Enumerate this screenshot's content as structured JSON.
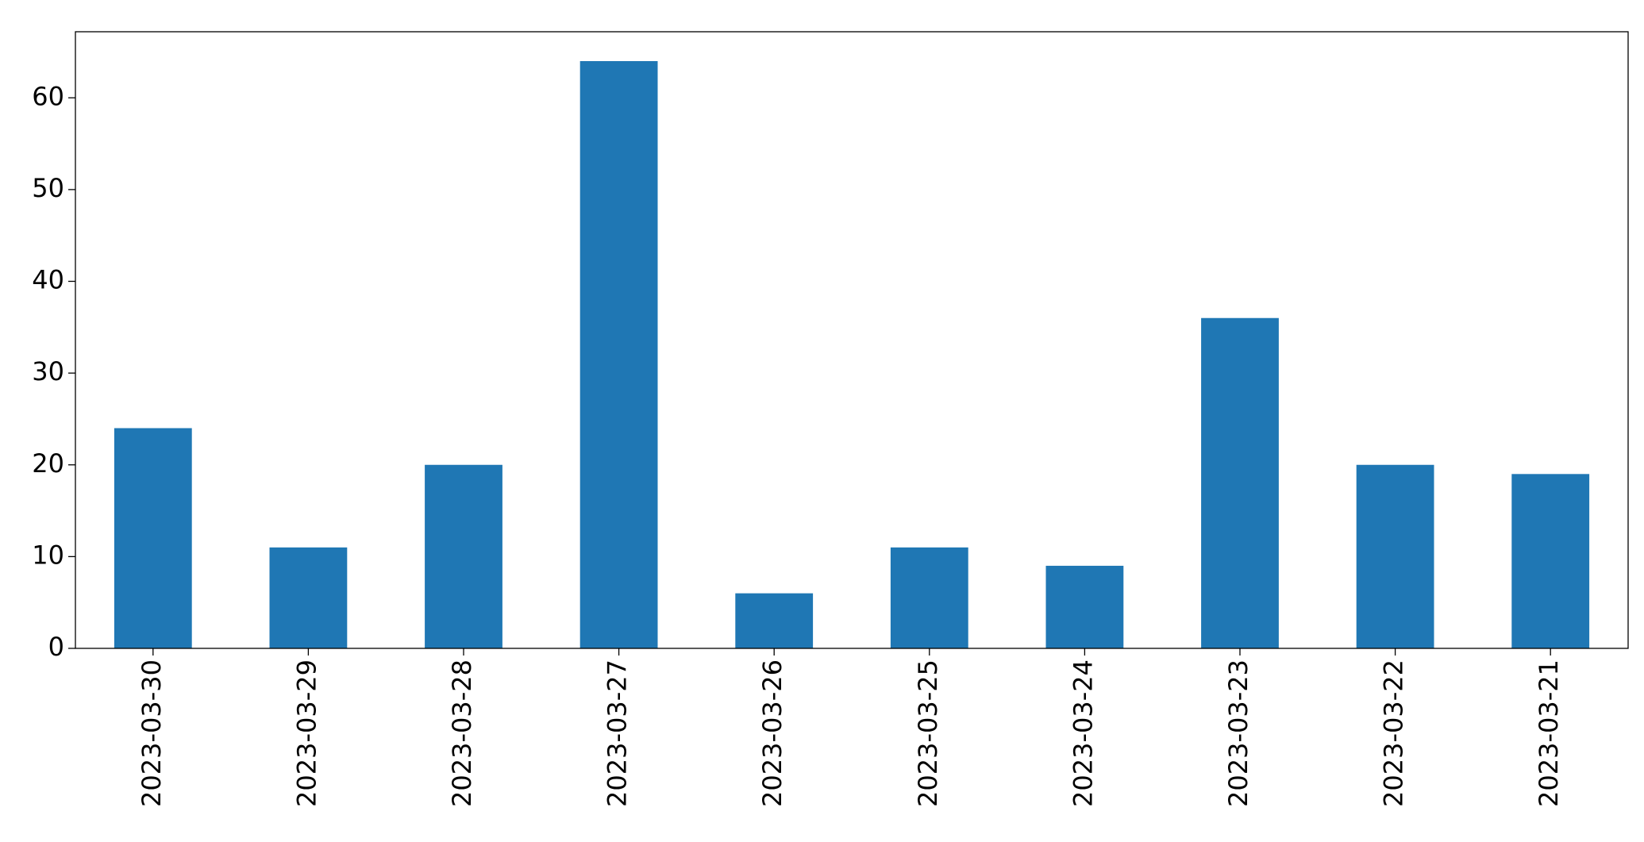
{
  "chart_data": {
    "type": "bar",
    "categories": [
      "2023-03-30",
      "2023-03-29",
      "2023-03-28",
      "2023-03-27",
      "2023-03-26",
      "2023-03-25",
      "2023-03-24",
      "2023-03-23",
      "2023-03-22",
      "2023-03-21"
    ],
    "values": [
      24,
      11,
      20,
      64,
      6,
      11,
      9,
      36,
      20,
      19
    ],
    "color": "#1f77b4",
    "ylim": [
      0,
      67.2
    ],
    "yticks": [
      0,
      10,
      20,
      30,
      40,
      50,
      60
    ],
    "grid": false
  }
}
